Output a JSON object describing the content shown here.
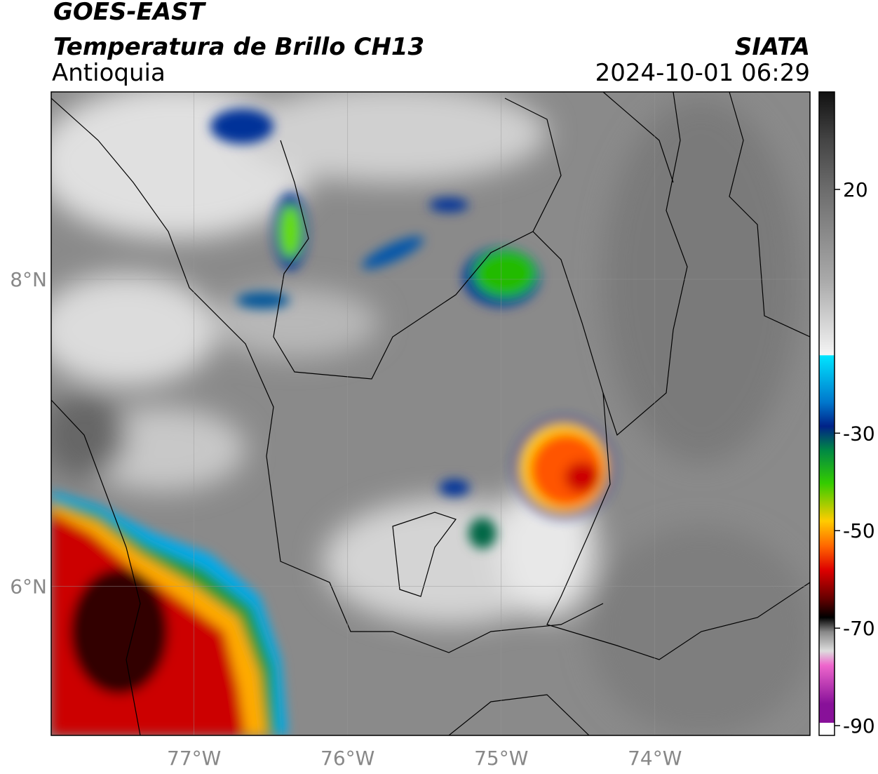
{
  "chart_data": {
    "type": "map",
    "title": "GOES-EAST",
    "subtitle": "Temperatura de Brillo CH13",
    "region": "Antioquia",
    "source": "SIATA",
    "timestamp": "2024-10-01 06:29",
    "xlim": [
      -77.93,
      -72.99
    ],
    "ylim": [
      5.03,
      9.22
    ],
    "xticks": [
      {
        "value": -77,
        "label": "77°W"
      },
      {
        "value": -76,
        "label": "76°W"
      },
      {
        "value": -75,
        "label": "75°W"
      },
      {
        "value": -74,
        "label": "74°W"
      }
    ],
    "yticks": [
      {
        "value": 8,
        "label": "8°N"
      },
      {
        "value": 6,
        "label": "6°N"
      }
    ],
    "grid": true,
    "colorbar": {
      "lim": [
        -92,
        40
      ],
      "ticks": [
        20,
        -30,
        -50,
        -70,
        -90
      ]
    }
  }
}
